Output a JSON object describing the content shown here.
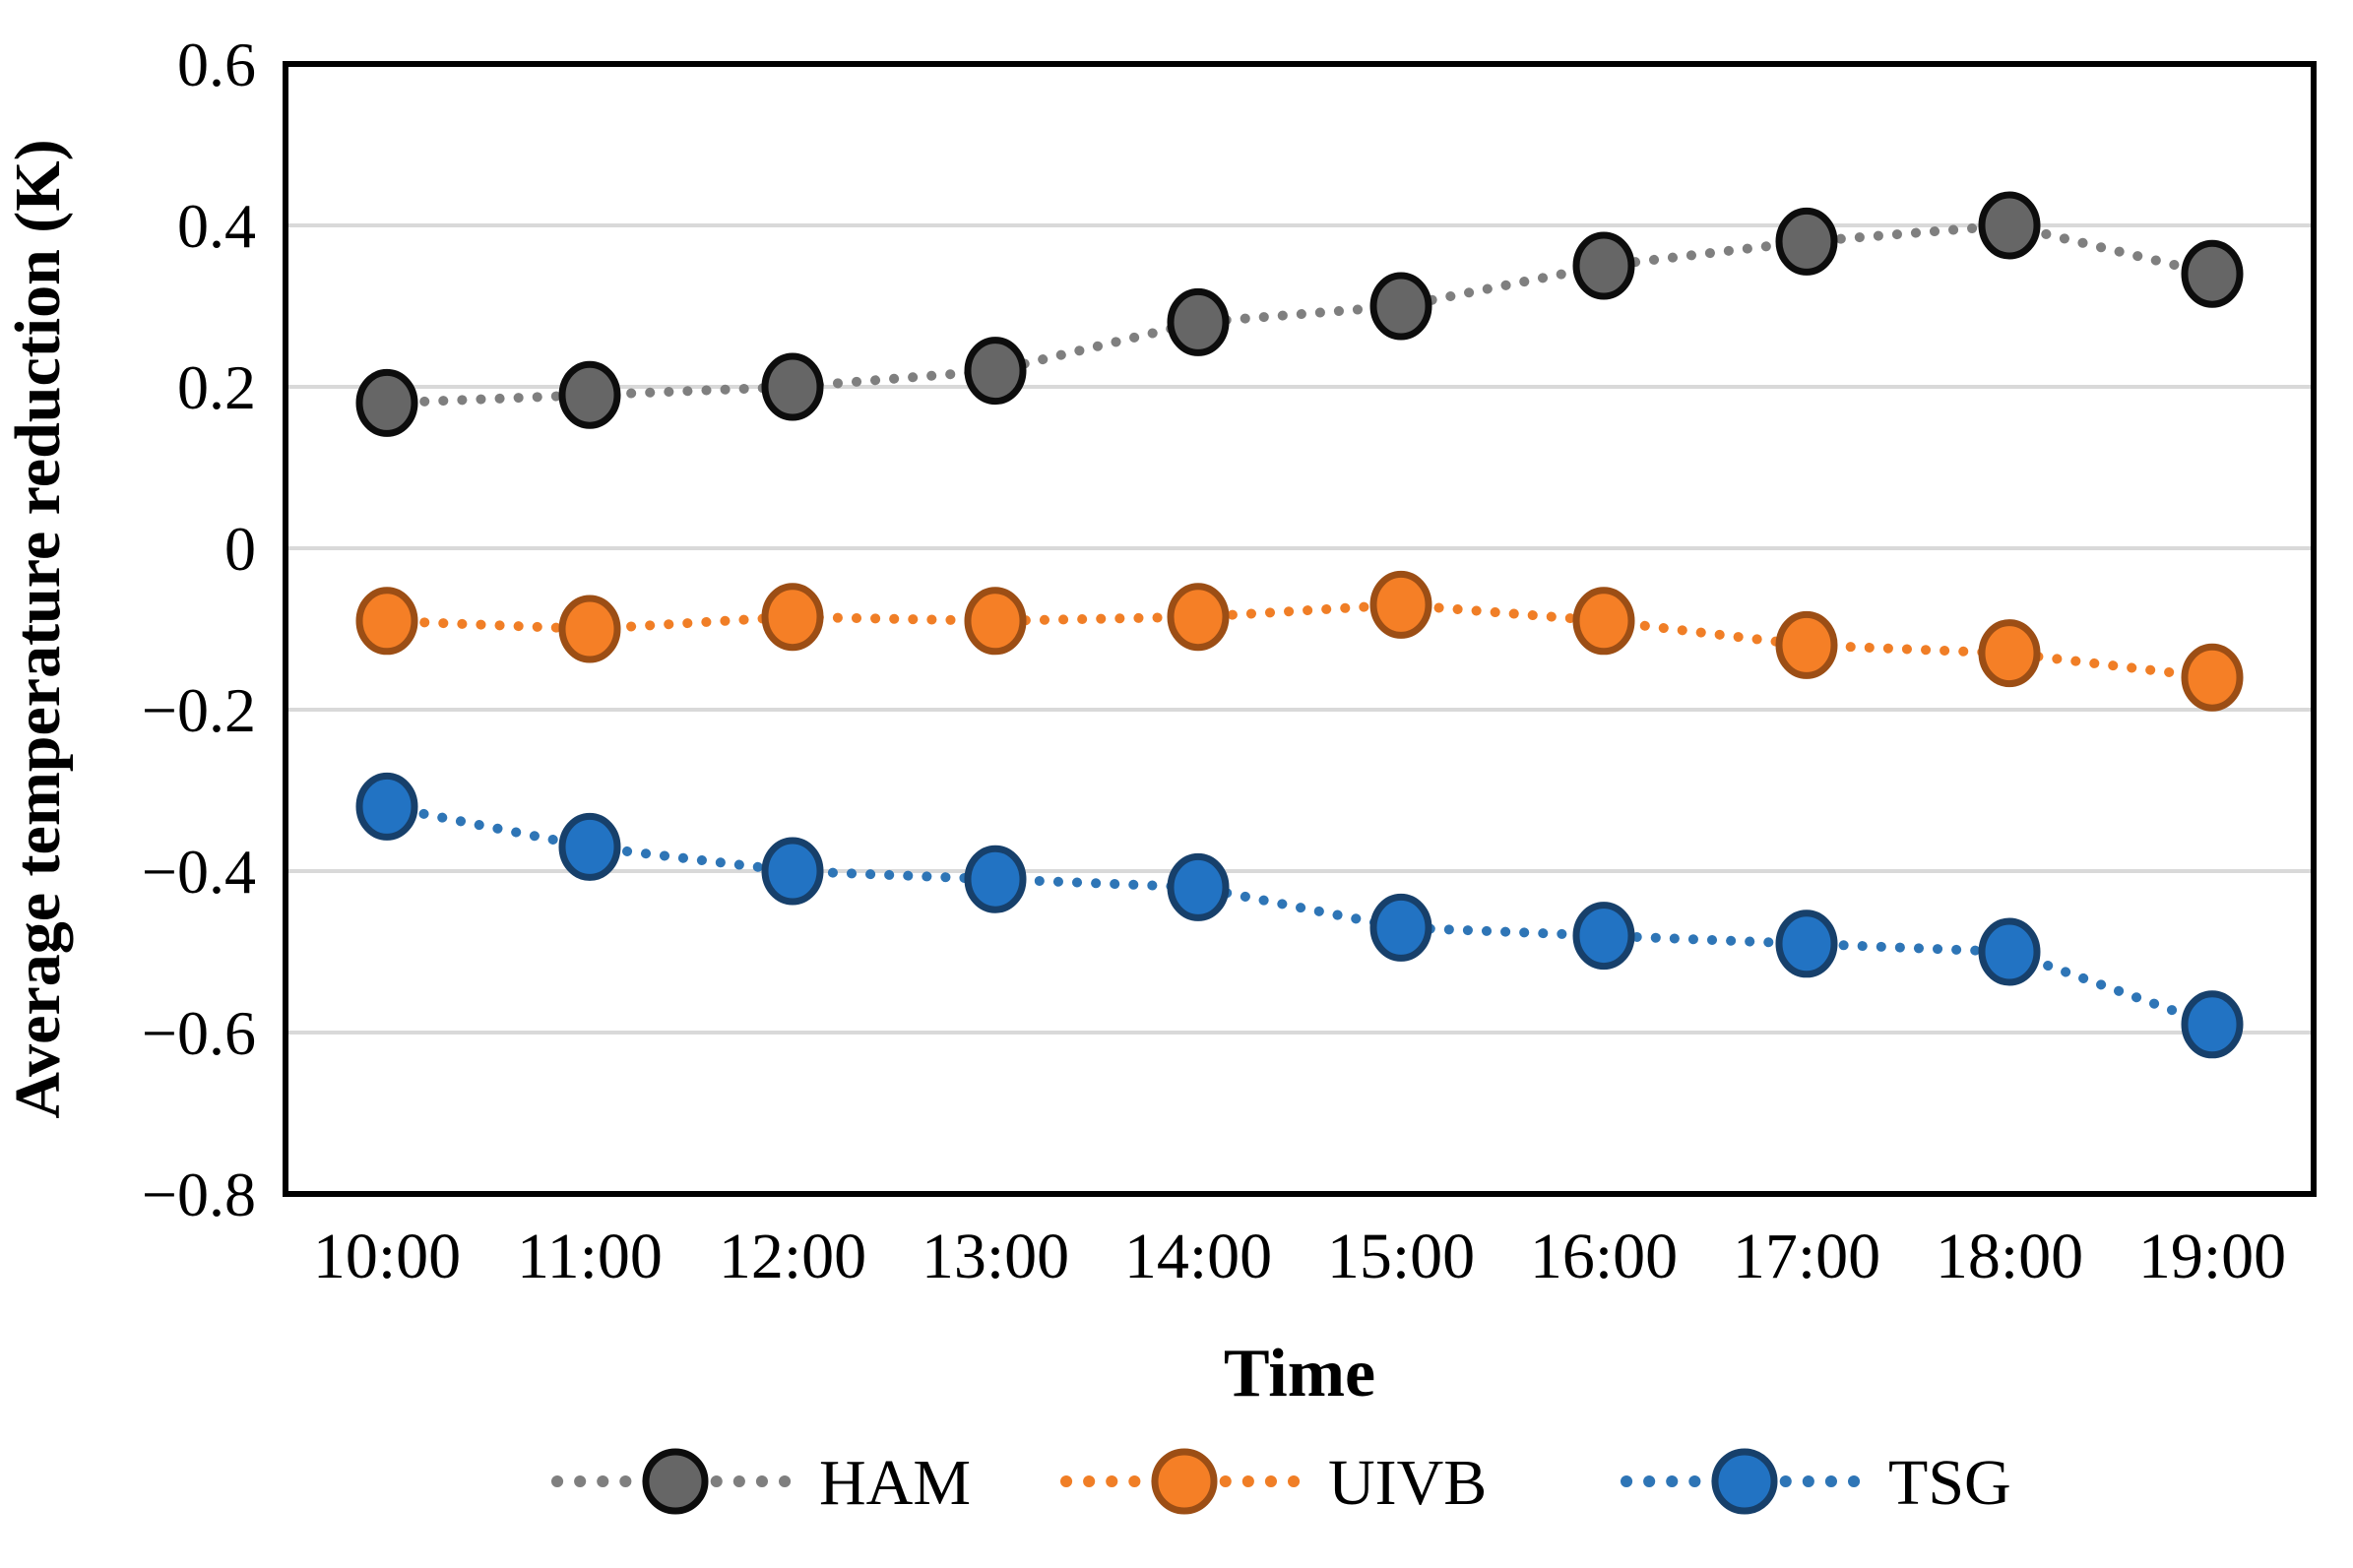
{
  "figure": {
    "ylabel": "Average temperature reduction (K)",
    "xlabel": "Time"
  },
  "chart_data": {
    "type": "line",
    "x": [
      "10:00",
      "11:00",
      "12:00",
      "13:00",
      "14:00",
      "15:00",
      "16:00",
      "17:00",
      "18:00",
      "19:00"
    ],
    "series": [
      {
        "name": "HAM",
        "values": [
          0.18,
          0.19,
          0.2,
          0.22,
          0.28,
          0.3,
          0.35,
          0.38,
          0.4,
          0.34
        ],
        "line_color": "#7F7F7F",
        "marker_fill": "#666666",
        "marker_stroke": "#0D0D0D"
      },
      {
        "name": "UIVB",
        "values": [
          -0.09,
          -0.1,
          -0.085,
          -0.09,
          -0.085,
          -0.07,
          -0.09,
          -0.12,
          -0.13,
          -0.16
        ],
        "line_color": "#F07E26",
        "marker_fill": "#F57F26",
        "marker_stroke": "#9C4E15"
      },
      {
        "name": "TSG",
        "values": [
          -0.32,
          -0.37,
          -0.4,
          -0.41,
          -0.42,
          -0.47,
          -0.48,
          -0.49,
          -0.5,
          -0.59
        ],
        "line_color": "#2E75B6",
        "marker_fill": "#2273C3",
        "marker_stroke": "#17406B"
      }
    ],
    "title": "",
    "xlabel": "Time",
    "ylabel": "Average temperature reduction (K)",
    "ylim": [
      -0.8,
      0.6
    ],
    "yticks": [
      0.6,
      0.4,
      0.2,
      0,
      -0.2,
      -0.4,
      -0.6,
      -0.8
    ],
    "ytick_labels": [
      "0.6",
      "0.4",
      "0.2",
      "0",
      "−0.2",
      "−0.4",
      "−0.6",
      "−0.8"
    ],
    "grid": true,
    "legend_position": "bottom",
    "styles": {
      "background": "#FFFFFF",
      "grid_color": "#D9D9D9",
      "axis_color": "#000000"
    }
  }
}
